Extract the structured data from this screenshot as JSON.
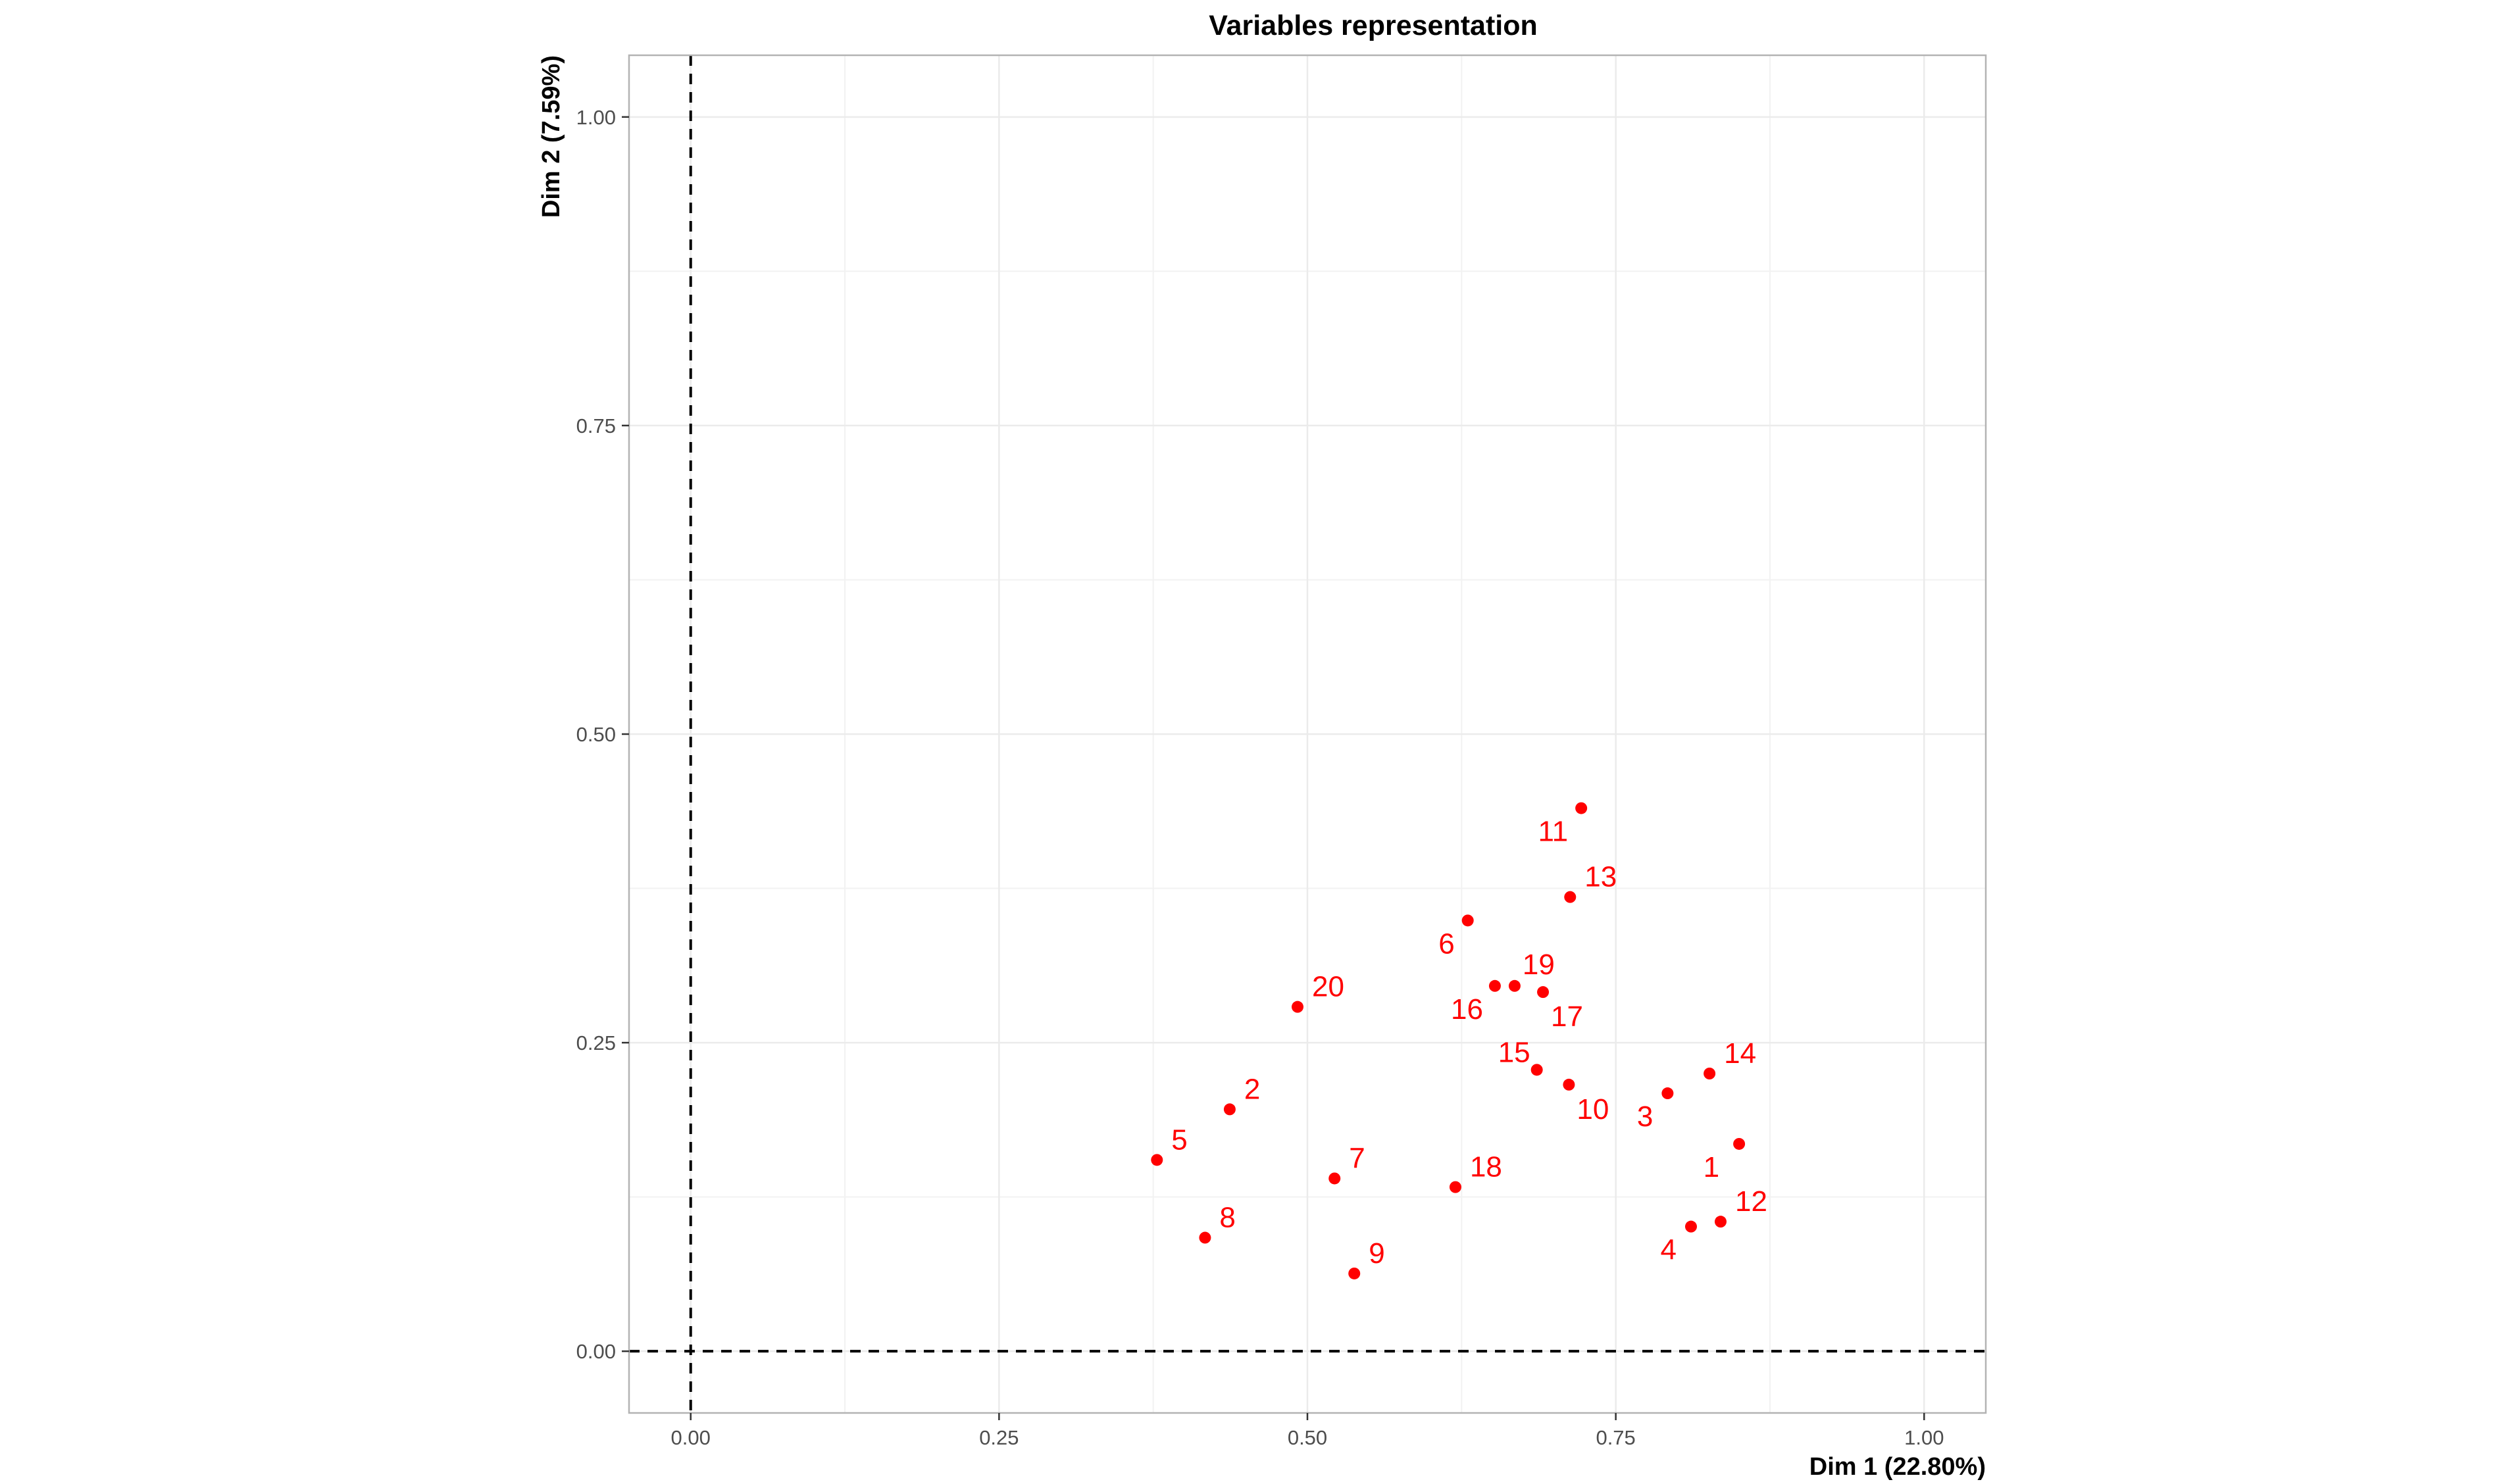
{
  "chart_data": {
    "type": "scatter",
    "title": "Variables representation",
    "xlabel": "Dim 1 (22.80%)",
    "ylabel": "Dim 2 (7.59%)",
    "xlim": [
      -0.05,
      1.05
    ],
    "ylim": [
      -0.05,
      1.05
    ],
    "x_ticks": [
      0.0,
      0.25,
      0.5,
      0.75,
      1.0
    ],
    "x_tick_labels": [
      "0.00",
      "0.25",
      "0.50",
      "0.75",
      "1.00"
    ],
    "y_ticks": [
      0.0,
      0.25,
      0.5,
      0.75,
      1.0
    ],
    "y_tick_labels": [
      "0.00",
      "0.25",
      "0.50",
      "0.75",
      "1.00"
    ],
    "grid": true,
    "reference_lines": {
      "x": 0,
      "y": 0,
      "style": "dashed"
    },
    "point_color": "#ff0000",
    "points": [
      {
        "label": "1",
        "x": 0.85,
        "y": 0.168
      },
      {
        "label": "2",
        "x": 0.437,
        "y": 0.196
      },
      {
        "label": "3",
        "x": 0.792,
        "y": 0.209
      },
      {
        "label": "4",
        "x": 0.811,
        "y": 0.101
      },
      {
        "label": "5",
        "x": 0.378,
        "y": 0.155
      },
      {
        "label": "6",
        "x": 0.63,
        "y": 0.349
      },
      {
        "label": "7",
        "x": 0.522,
        "y": 0.14
      },
      {
        "label": "8",
        "x": 0.417,
        "y": 0.092
      },
      {
        "label": "9",
        "x": 0.538,
        "y": 0.063
      },
      {
        "label": "10",
        "x": 0.712,
        "y": 0.216
      },
      {
        "label": "11",
        "x": 0.722,
        "y": 0.44
      },
      {
        "label": "12",
        "x": 0.835,
        "y": 0.105
      },
      {
        "label": "13",
        "x": 0.713,
        "y": 0.368
      },
      {
        "label": "14",
        "x": 0.826,
        "y": 0.225
      },
      {
        "label": "15",
        "x": 0.686,
        "y": 0.228
      },
      {
        "label": "16",
        "x": 0.652,
        "y": 0.296
      },
      {
        "label": "17",
        "x": 0.691,
        "y": 0.291
      },
      {
        "label": "18",
        "x": 0.62,
        "y": 0.133
      },
      {
        "label": "19",
        "x": 0.668,
        "y": 0.296
      },
      {
        "label": "20",
        "x": 0.492,
        "y": 0.279
      }
    ]
  }
}
